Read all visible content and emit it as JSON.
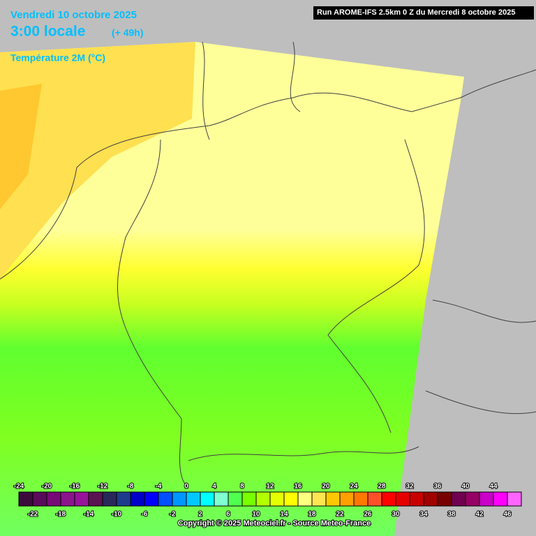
{
  "header": {
    "date": "Vendredi 10 octobre 2025",
    "time": "3:00 locale",
    "lead": "(+ 49h)",
    "parameter": "Température 2M (°C)",
    "run": "Run AROME-IFS 2.5km 0 Z du Mercredi 8 octobre 2025"
  },
  "legend": {
    "swatches": [
      {
        "label": -24,
        "color": "#3c0a3c"
      },
      {
        "label": -22,
        "color": "#5a0a5a"
      },
      {
        "label": -20,
        "color": "#780a78"
      },
      {
        "label": -18,
        "color": "#8c148c"
      },
      {
        "label": -16,
        "color": "#96149a"
      },
      {
        "label": -14,
        "color": "#5a1450"
      },
      {
        "label": -12,
        "color": "#28285a"
      },
      {
        "label": -10,
        "color": "#1e3c8c"
      },
      {
        "label": -8,
        "color": "#0000c8"
      },
      {
        "label": -6,
        "color": "#0000ff"
      },
      {
        "label": -4,
        "color": "#0050ff"
      },
      {
        "label": -2,
        "color": "#0096ff"
      },
      {
        "label": 0,
        "color": "#00c8ff"
      },
      {
        "label": 2,
        "color": "#00ffff"
      },
      {
        "label": 4,
        "color": "#80ffd0"
      },
      {
        "label": 6,
        "color": "#50ff50"
      },
      {
        "label": 8,
        "color": "#78ff00"
      },
      {
        "label": 10,
        "color": "#b4ff00"
      },
      {
        "label": 12,
        "color": "#e6ff00"
      },
      {
        "label": 14,
        "color": "#ffff00"
      },
      {
        "label": 16,
        "color": "#ffff80"
      },
      {
        "label": 18,
        "color": "#ffe650"
      },
      {
        "label": 20,
        "color": "#ffc800"
      },
      {
        "label": 22,
        "color": "#ffa000"
      },
      {
        "label": 24,
        "color": "#ff7800"
      },
      {
        "label": 26,
        "color": "#ff5028"
      },
      {
        "label": 28,
        "color": "#ff0000"
      },
      {
        "label": 30,
        "color": "#e60000"
      },
      {
        "label": 32,
        "color": "#c80000"
      },
      {
        "label": 34,
        "color": "#a00000"
      },
      {
        "label": 36,
        "color": "#780000"
      },
      {
        "label": 38,
        "color": "#700050"
      },
      {
        "label": 40,
        "color": "#960064"
      },
      {
        "label": 42,
        "color": "#c800c8"
      },
      {
        "label": 44,
        "color": "#ff00ff"
      },
      {
        "label": 46,
        "color": "#ff64ff"
      }
    ]
  },
  "footer": {
    "copyright": "Copyright © 2025 Meteociel.fr - Source Meteo-France"
  }
}
